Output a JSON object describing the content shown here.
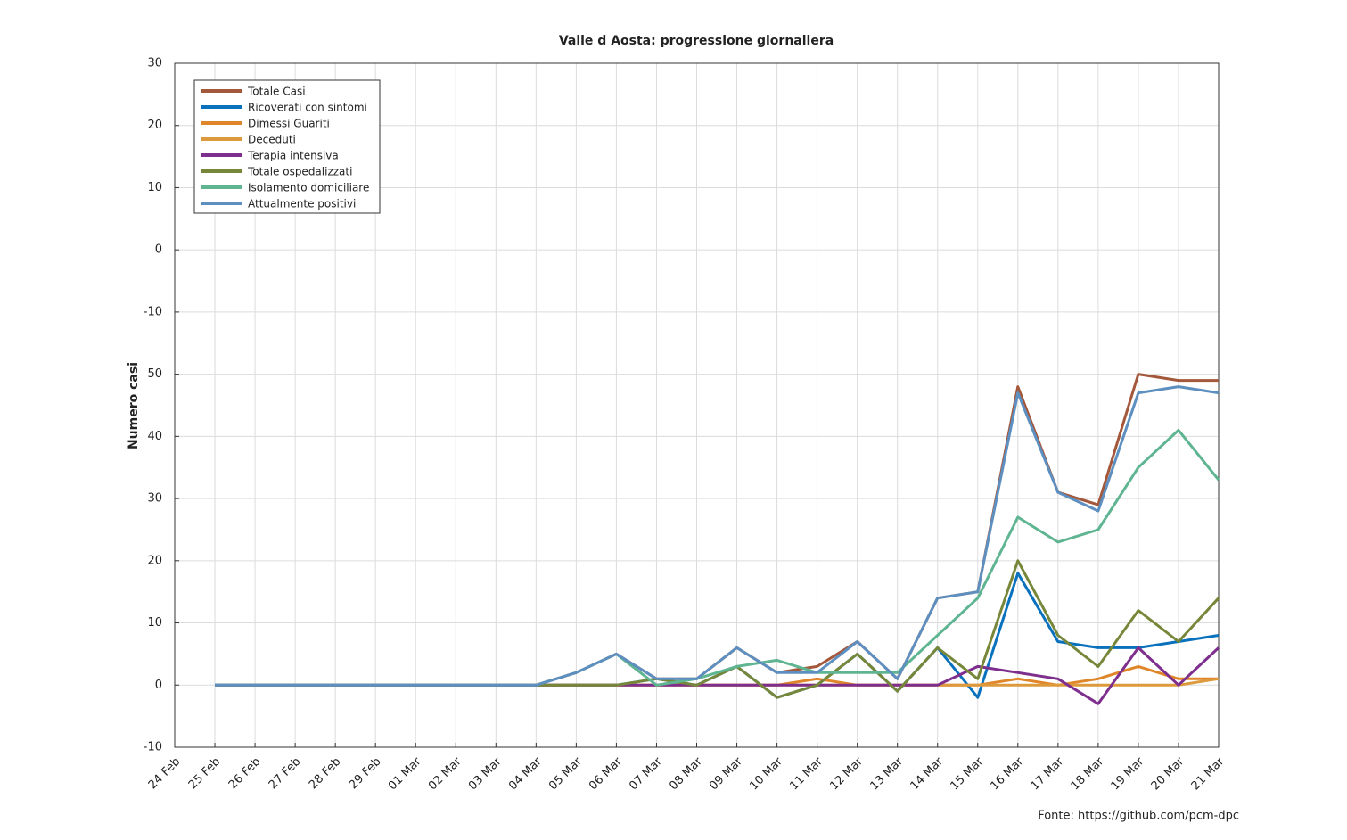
{
  "chart_data": {
    "type": "line",
    "title": "Valle d Aosta: progressione giornaliera",
    "y_label": "Numero casi",
    "source": "Fonte:  https://github.com/pcm-dpc",
    "categories": [
      "24 Feb",
      "25 Feb",
      "26 Feb",
      "27 Feb",
      "28 Feb",
      "29 Feb",
      "01 Mar",
      "02 Mar",
      "03 Mar",
      "04 Mar",
      "05 Mar",
      "06 Mar",
      "07 Mar",
      "08 Mar",
      "09 Mar",
      "10 Mar",
      "11 Mar",
      "12 Mar",
      "13 Mar",
      "14 Mar",
      "15 Mar",
      "16 Mar",
      "17 Mar",
      "18 Mar",
      "19 Mar",
      "20 Mar",
      "21 Mar"
    ],
    "ylim": [
      -10,
      100
    ],
    "yticks": [
      -10,
      0,
      10,
      20,
      30,
      40,
      50,
      {
        "value": 60,
        "label": "-10"
      },
      {
        "value": 70,
        "label": "0"
      },
      {
        "value": 80,
        "label": "10"
      },
      {
        "value": 90,
        "label": "20"
      },
      {
        "value": 100,
        "label": "30"
      }
    ],
    "grid": true,
    "legend": "upper-left",
    "series": [
      {
        "name": "Totale Casi",
        "color": "#a3573b",
        "values": [
          null,
          0,
          0,
          0,
          0,
          0,
          0,
          0,
          0,
          0,
          2,
          5,
          1,
          1,
          6,
          2,
          3,
          7,
          1,
          14,
          15,
          48,
          31,
          29,
          50,
          49,
          49
        ]
      },
      {
        "name": "Ricoverati con sintomi",
        "color": "#0a72bd",
        "values": [
          null,
          0,
          0,
          0,
          0,
          0,
          0,
          0,
          0,
          0,
          0,
          0,
          1,
          0,
          3,
          -2,
          0,
          5,
          -1,
          6,
          -2,
          18,
          7,
          6,
          6,
          7,
          8
        ]
      },
      {
        "name": "Dimessi Guariti",
        "color": "#e0862a",
        "values": [
          null,
          0,
          0,
          0,
          0,
          0,
          0,
          0,
          0,
          0,
          0,
          0,
          0,
          0,
          0,
          0,
          1,
          0,
          0,
          0,
          0,
          1,
          0,
          1,
          3,
          1,
          1
        ]
      },
      {
        "name": "Deceduti",
        "color": "#dd9a3c",
        "values": [
          null,
          0,
          0,
          0,
          0,
          0,
          0,
          0,
          0,
          0,
          0,
          0,
          0,
          0,
          0,
          0,
          0,
          0,
          0,
          0,
          0,
          0,
          0,
          0,
          0,
          0,
          1
        ]
      },
      {
        "name": "Terapia intensiva",
        "color": "#7e2f8e",
        "values": [
          null,
          0,
          0,
          0,
          0,
          0,
          0,
          0,
          0,
          0,
          0,
          0,
          0,
          0,
          0,
          0,
          0,
          0,
          0,
          0,
          3,
          2,
          1,
          -3,
          6,
          0,
          6
        ]
      },
      {
        "name": "Totale ospedalizzati",
        "color": "#77873a",
        "values": [
          null,
          0,
          0,
          0,
          0,
          0,
          0,
          0,
          0,
          0,
          0,
          0,
          1,
          0,
          3,
          -2,
          0,
          5,
          -1,
          6,
          1,
          20,
          8,
          3,
          12,
          7,
          14
        ]
      },
      {
        "name": "Isolamento domiciliare",
        "color": "#5fb592",
        "values": [
          null,
          0,
          0,
          0,
          0,
          0,
          0,
          0,
          0,
          0,
          2,
          5,
          0,
          1,
          3,
          4,
          2,
          2,
          2,
          8,
          14,
          27,
          23,
          25,
          35,
          41,
          33
        ]
      },
      {
        "name": "Attualmente positivi",
        "color": "#5d8fc0",
        "values": [
          null,
          0,
          0,
          0,
          0,
          0,
          0,
          0,
          0,
          0,
          2,
          5,
          1,
          1,
          6,
          2,
          2,
          7,
          1,
          14,
          15,
          47,
          31,
          28,
          47,
          48,
          47
        ]
      }
    ]
  }
}
